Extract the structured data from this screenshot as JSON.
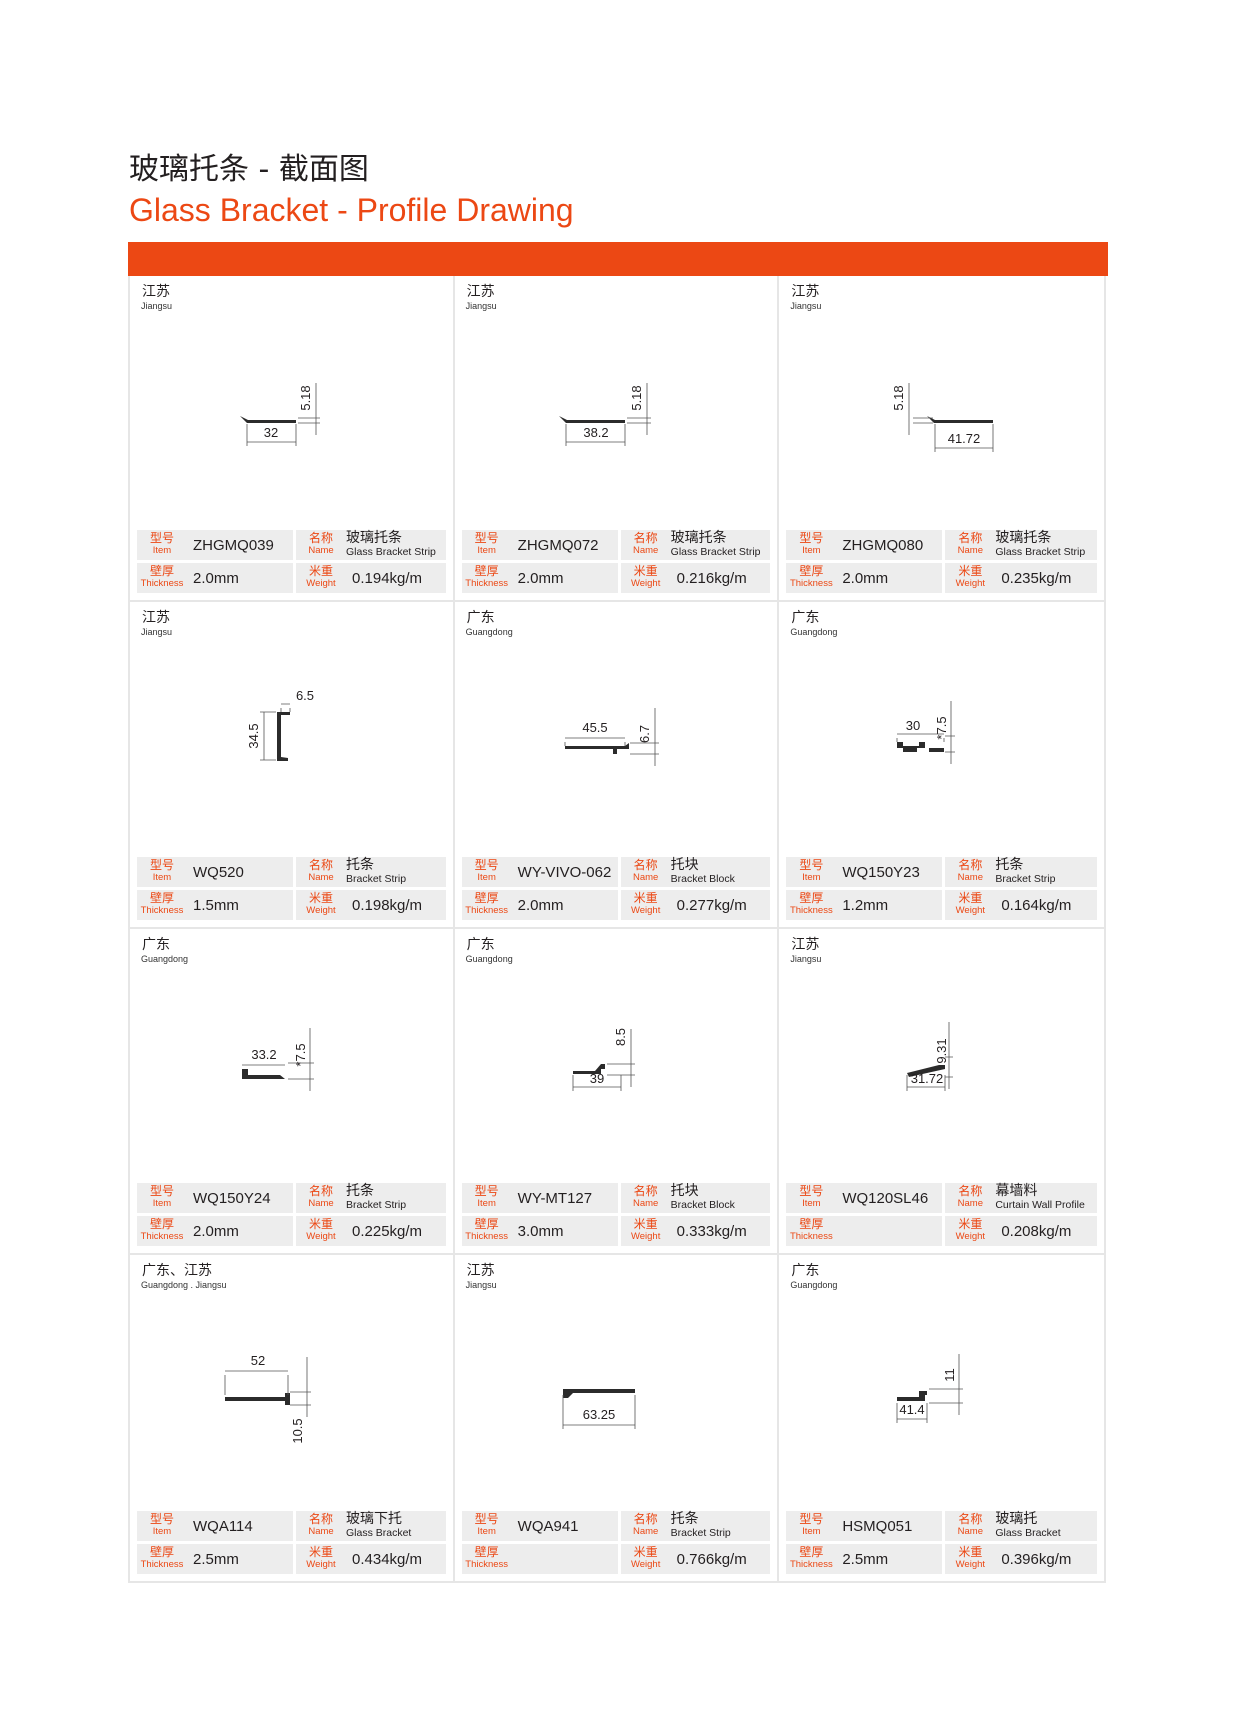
{
  "header": {
    "title_zh": "玻璃托条 - 截面图",
    "title_en": "Glass Bracket - Profile Drawing"
  },
  "colors": {
    "accent": "#ec4814",
    "cell_bg": "#ededed",
    "border": "#e6e6e6"
  },
  "labels": {
    "item_zh": "型号",
    "item_en": "Item",
    "name_zh": "名称",
    "name_en": "Name",
    "thickness_zh": "壁厚",
    "thickness_en": "Thickness",
    "weight_zh": "米重",
    "weight_en": "Weight"
  },
  "cards": [
    {
      "loc_zh": "江苏",
      "loc_en": "Jiangsu",
      "item": "ZHGMQ039",
      "name_zh": "玻璃托条",
      "name_en": "Glass Bracket Strip",
      "thickness": "2.0mm",
      "weight": "0.194kg/m",
      "dims": [
        "5.18",
        "32"
      ]
    },
    {
      "loc_zh": "江苏",
      "loc_en": "Jiangsu",
      "item": "ZHGMQ072",
      "name_zh": "玻璃托条",
      "name_en": "Glass Bracket Strip",
      "thickness": "2.0mm",
      "weight": "0.216kg/m",
      "dims": [
        "5.18",
        "38.2"
      ]
    },
    {
      "loc_zh": "江苏",
      "loc_en": "Jiangsu",
      "item": "ZHGMQ080",
      "name_zh": "玻璃托条",
      "name_en": "Glass Bracket Strip",
      "thickness": "2.0mm",
      "weight": "0.235kg/m",
      "dims": [
        "5.18",
        "41.72"
      ]
    },
    {
      "loc_zh": "江苏",
      "loc_en": "Jiangsu",
      "item": "WQ520",
      "name_zh": "托条",
      "name_en": "Bracket Strip",
      "thickness": "1.5mm",
      "weight": "0.198kg/m",
      "dims": [
        "34.5",
        "6.5"
      ]
    },
    {
      "loc_zh": "广东",
      "loc_en": "Guangdong",
      "item": "WY-VIVO-062",
      "name_zh": "托块",
      "name_en": "Bracket Block",
      "thickness": "2.0mm",
      "weight": "0.277kg/m",
      "dims": [
        "6.7",
        "45.5"
      ]
    },
    {
      "loc_zh": "广东",
      "loc_en": "Guangdong",
      "item": "WQ150Y23",
      "name_zh": "托条",
      "name_en": "Bracket Strip",
      "thickness": "1.2mm",
      "weight": "0.164kg/m",
      "dims": [
        "*7.5",
        "30"
      ]
    },
    {
      "loc_zh": "广东",
      "loc_en": "Guangdong",
      "item": "WQ150Y24",
      "name_zh": "托条",
      "name_en": "Bracket Strip",
      "thickness": "2.0mm",
      "weight": "0.225kg/m",
      "dims": [
        "*7.5",
        "33.2"
      ]
    },
    {
      "loc_zh": "广东",
      "loc_en": "Guangdong",
      "item": "WY-MT127",
      "name_zh": "托块",
      "name_en": "Bracket Block",
      "thickness": "3.0mm",
      "weight": "0.333kg/m",
      "dims": [
        "8.5",
        "39"
      ]
    },
    {
      "loc_zh": "江苏",
      "loc_en": "Jiangsu",
      "item": "WQ120SL46",
      "name_zh": "幕墙料",
      "name_en": "Curtain Wall Profile",
      "thickness": "",
      "weight": "0.208kg/m",
      "dims": [
        "9.31",
        "31.72"
      ]
    },
    {
      "loc_zh": "广东、江苏",
      "loc_en": "Guangdong . Jiangsu",
      "item": "WQA114",
      "name_zh": "玻璃下托",
      "name_en": "Glass Bracket",
      "thickness": "2.5mm",
      "weight": "0.434kg/m",
      "dims": [
        "10.5",
        "52"
      ]
    },
    {
      "loc_zh": "江苏",
      "loc_en": "Jiangsu",
      "item": "WQA941",
      "name_zh": "托条",
      "name_en": "Bracket Strip",
      "thickness": "",
      "weight": "0.766kg/m",
      "dims": [
        "",
        "63.25"
      ]
    },
    {
      "loc_zh": "广东",
      "loc_en": "Guangdong",
      "item": "HSMQ051",
      "name_zh": "玻璃托",
      "name_en": "Glass Bracket",
      "thickness": "2.5mm",
      "weight": "0.396kg/m",
      "dims": [
        "11",
        "41.4"
      ]
    }
  ]
}
